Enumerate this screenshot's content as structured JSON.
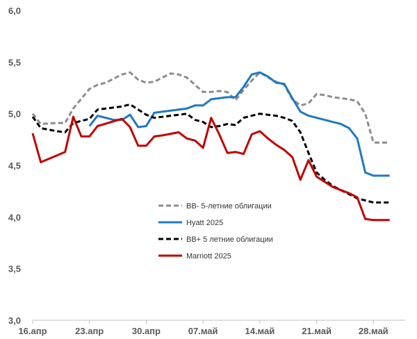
{
  "chart_data": {
    "type": "line",
    "ylim": [
      3.0,
      6.0
    ],
    "yticks": [
      "3,0",
      "3,5",
      "4,0",
      "4,5",
      "5,0",
      "5,5",
      "6,0"
    ],
    "ytick_values": [
      3.0,
      3.5,
      4.0,
      4.5,
      5.0,
      5.5,
      6.0
    ],
    "xlim": [
      0,
      46
    ],
    "xticks": [
      "16.апр",
      "23.апр",
      "30.апр",
      "07.май",
      "14.май",
      "21.май",
      "28.май"
    ],
    "xtick_values": [
      0,
      7,
      14,
      21,
      28,
      35,
      42
    ],
    "grid": false,
    "legend_position": "lower-left, inside plot",
    "series": [
      {
        "name": "BB- 5-летние облигации",
        "color": "#8c8c8c",
        "dash": "dashed",
        "x": [
          0,
          1,
          3,
          4,
          5,
          7,
          8,
          9,
          11,
          12,
          13,
          14,
          15,
          16,
          17,
          18,
          19,
          20,
          21,
          22,
          23,
          24,
          25,
          26,
          27,
          28,
          29,
          30,
          31,
          32,
          33,
          34,
          35,
          36,
          37,
          38,
          39,
          40,
          41,
          42,
          43,
          44
        ],
        "y": [
          5.0,
          4.9,
          4.91,
          4.91,
          5.05,
          5.24,
          5.28,
          5.3,
          5.38,
          5.4,
          5.33,
          5.3,
          5.31,
          5.35,
          5.39,
          5.38,
          5.35,
          5.28,
          5.21,
          5.21,
          5.22,
          5.21,
          5.13,
          5.23,
          5.32,
          5.4,
          5.35,
          5.31,
          5.28,
          5.14,
          5.08,
          5.1,
          5.19,
          5.18,
          5.16,
          5.15,
          5.14,
          5.12,
          5.0,
          4.72,
          4.72,
          4.72
        ]
      },
      {
        "name": "Hyatt 2025",
        "color": "#1f78c1",
        "dash": "solid",
        "x": [
          7,
          8,
          9,
          10,
          11,
          12,
          13,
          14,
          15,
          16,
          17,
          18,
          19,
          20,
          21,
          22,
          23,
          24,
          25,
          26,
          27,
          28,
          29,
          30,
          31,
          32,
          33,
          34,
          35,
          36,
          37,
          38,
          39,
          40,
          41,
          42,
          43,
          44
        ],
        "y": [
          4.88,
          4.98,
          4.96,
          4.94,
          4.94,
          4.99,
          4.87,
          4.88,
          5.01,
          5.02,
          5.03,
          5.04,
          5.05,
          5.08,
          5.08,
          5.14,
          5.15,
          5.16,
          5.16,
          5.26,
          5.38,
          5.4,
          5.36,
          5.3,
          5.29,
          5.15,
          5.02,
          4.98,
          4.96,
          4.94,
          4.92,
          4.9,
          4.86,
          4.76,
          4.43,
          4.4,
          4.4,
          4.4
        ]
      },
      {
        "name": "BB+ 5 летние облигации",
        "color": "#000000",
        "dash": "dashed",
        "x": [
          0,
          1,
          3,
          4,
          5,
          7,
          8,
          9,
          11,
          12,
          13,
          14,
          15,
          16,
          17,
          18,
          19,
          20,
          21,
          22,
          23,
          24,
          25,
          26,
          27,
          28,
          29,
          30,
          31,
          32,
          33,
          34,
          35,
          36,
          37,
          38,
          39,
          40,
          41,
          42,
          43,
          44
        ],
        "y": [
          4.97,
          4.86,
          4.83,
          4.82,
          4.91,
          4.95,
          5.04,
          5.05,
          5.07,
          5.09,
          5.04,
          4.99,
          4.96,
          4.97,
          4.98,
          4.99,
          5.0,
          4.94,
          4.92,
          4.87,
          4.88,
          4.9,
          4.89,
          4.96,
          4.98,
          5.0,
          4.99,
          4.98,
          4.96,
          4.93,
          4.82,
          4.62,
          4.43,
          4.36,
          4.3,
          4.26,
          4.22,
          4.18,
          4.16,
          4.14,
          4.14,
          4.14
        ]
      },
      {
        "name": "Marriott 2025",
        "color": "#c00000",
        "dash": "solid",
        "x": [
          0,
          1,
          4,
          5,
          6,
          7,
          8,
          11,
          12,
          13,
          14,
          15,
          16,
          18,
          19,
          20,
          21,
          22,
          23,
          24,
          25,
          26,
          27,
          28,
          29,
          30,
          31,
          32,
          33,
          34,
          35,
          36,
          37,
          38,
          39,
          40,
          41,
          42,
          43,
          44
        ],
        "y": [
          4.81,
          4.53,
          4.63,
          4.97,
          4.78,
          4.78,
          4.88,
          4.95,
          4.87,
          4.69,
          4.69,
          4.78,
          4.79,
          4.82,
          4.76,
          4.74,
          4.67,
          4.96,
          4.8,
          4.62,
          4.63,
          4.61,
          4.8,
          4.83,
          4.76,
          4.7,
          4.65,
          4.58,
          4.36,
          4.55,
          4.39,
          4.34,
          4.29,
          4.26,
          4.23,
          4.19,
          3.98,
          3.97,
          3.97,
          3.97
        ]
      }
    ]
  }
}
